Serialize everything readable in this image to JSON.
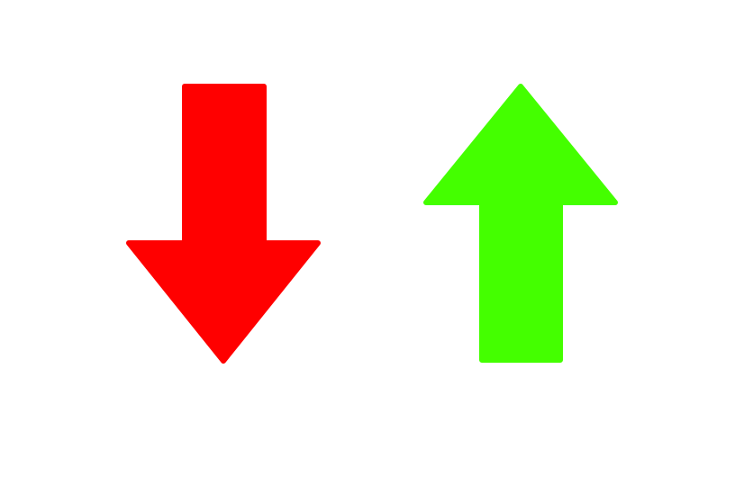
{
  "arrows": [
    {
      "name": "down-arrow-icon",
      "direction": "down",
      "color": "#ff0000"
    },
    {
      "name": "up-arrow-icon",
      "direction": "up",
      "color": "#44ff00"
    }
  ]
}
